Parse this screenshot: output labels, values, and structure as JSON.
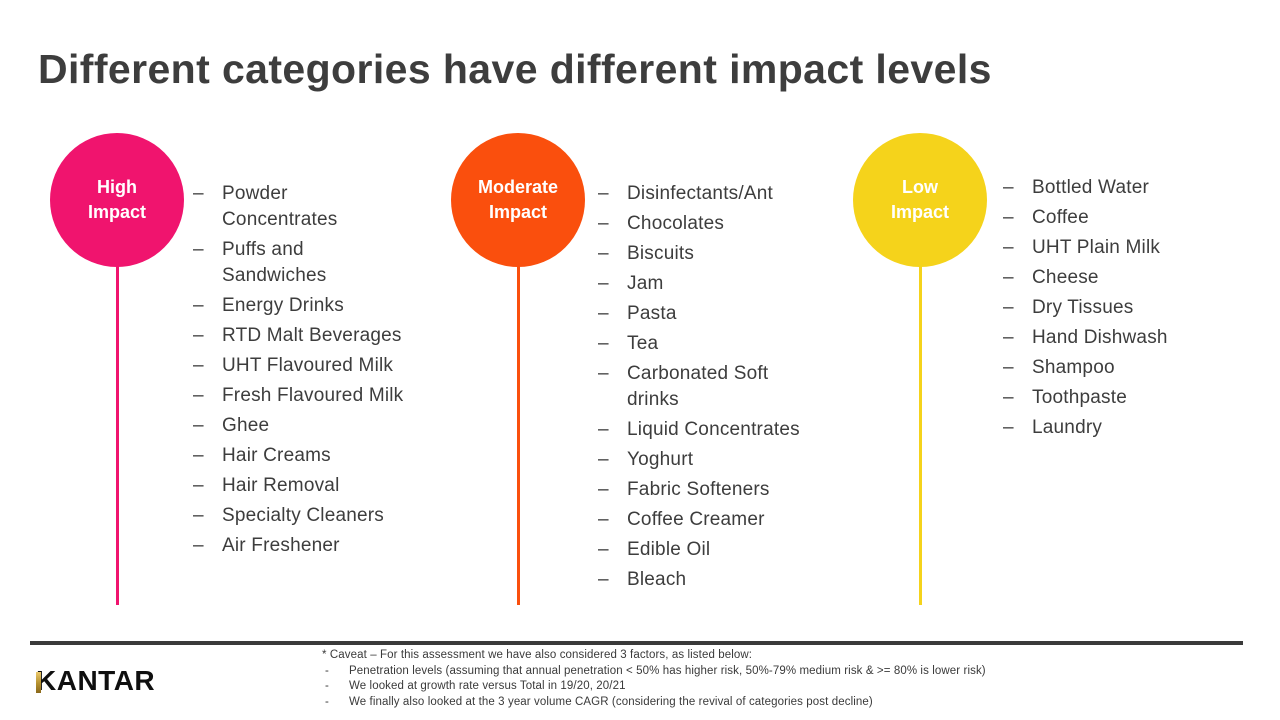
{
  "slide": {
    "title": "Different categories have different impact levels",
    "bullet_char": "–",
    "text_color": "#3d3d3d",
    "divider_color": "#3a3a3a"
  },
  "columns": [
    {
      "label": "High\nImpact",
      "color": "#f0146e",
      "items": [
        "Powder\nConcentrates",
        "Puffs and\nSandwiches",
        "Energy Drinks",
        "RTD Malt Beverages",
        "UHT Flavoured Milk",
        "Fresh Flavoured Milk",
        "Ghee",
        "Hair Creams",
        "Hair Removal",
        "Specialty Cleaners",
        "Air Freshener"
      ]
    },
    {
      "label": "Moderate\nImpact",
      "color": "#fa4f0d",
      "items": [
        "Disinfectants/Ant",
        "Chocolates",
        "Biscuits",
        "Jam",
        "Pasta",
        "Tea",
        "Carbonated Soft\ndrinks",
        "Liquid Concentrates",
        "Yoghurt",
        "Fabric Softeners",
        "Coffee Creamer",
        "Edible Oil",
        "Bleach"
      ]
    },
    {
      "label": "Low\nImpact",
      "color": "#f5d31b",
      "items": [
        "Bottled Water",
        "Coffee",
        "UHT Plain Milk",
        "Cheese",
        "Dry Tissues",
        "Hand Dishwash",
        "Shampoo",
        "Toothpaste",
        "Laundry"
      ]
    }
  ],
  "footer": {
    "logo": "KANTAR",
    "caveat_title": "* Caveat – For this assessment we have also considered 3 factors, as listed below:",
    "caveat_bullet": "-",
    "caveat_items": [
      "Penetration levels (assuming that annual penetration < 50% has higher risk, 50%-79% medium risk & >= 80% is lower risk)",
      "We looked at growth rate versus Total in 19/20, 20/21",
      "We finally also looked at the 3 year volume CAGR (considering the revival of categories post decline)"
    ]
  }
}
